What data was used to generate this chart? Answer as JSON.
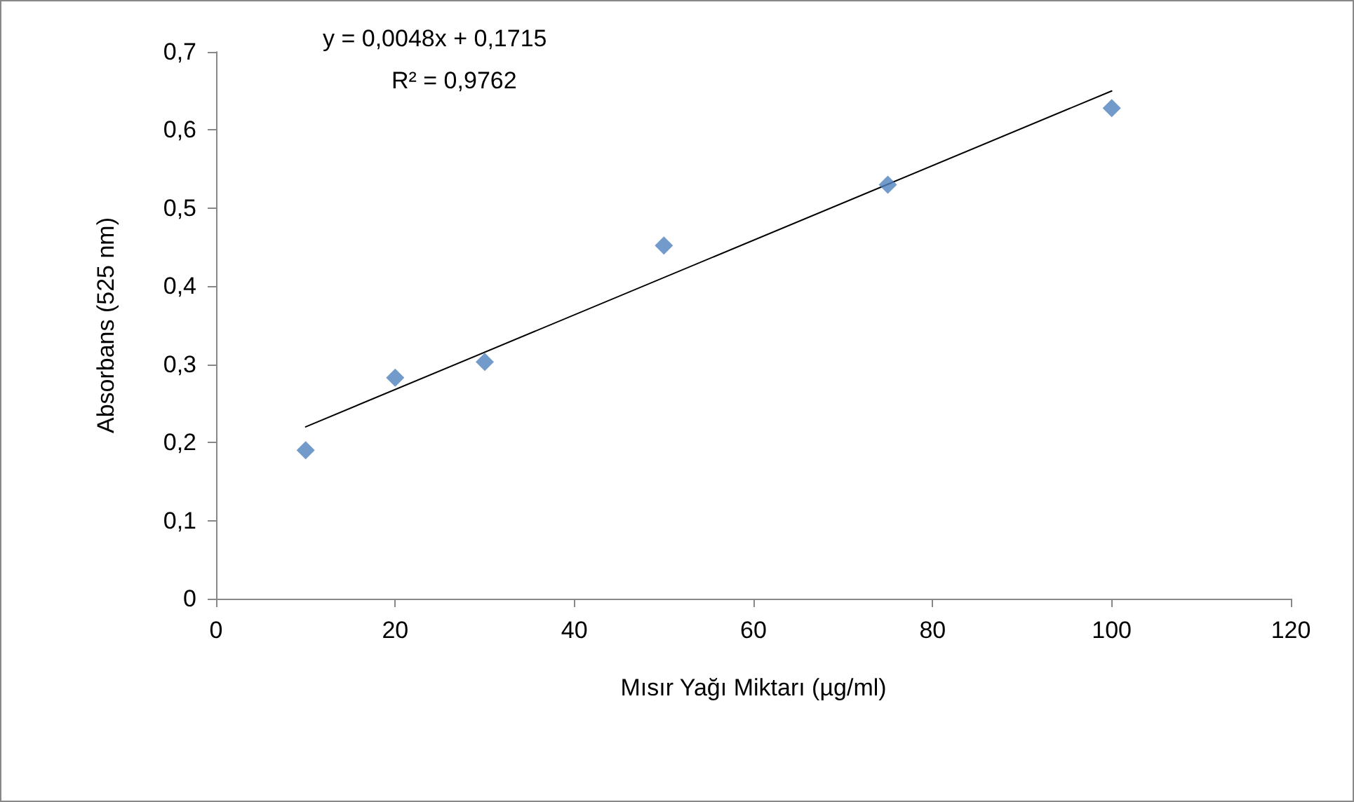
{
  "chart_data": {
    "type": "scatter",
    "xlabel": "Mısır Yağı Miktarı (µg/ml)",
    "ylabel": "Absorbans (525 nm)",
    "annotations": [
      "y = 0,0048x + 0,1715",
      "R² = 0,9762"
    ],
    "series": [
      {
        "color": "#4f81bd",
        "marker": "diamond",
        "x": [
          10,
          20,
          30,
          50,
          75,
          100
        ],
        "values": [
          0.19,
          0.283,
          0.303,
          0.452,
          0.53,
          0.628
        ]
      },
      {
        "type": "line",
        "color": "#000000",
        "marker": "none",
        "x": [
          10,
          100
        ],
        "values": [
          0.22,
          0.65
        ]
      }
    ],
    "xlim": [
      0,
      120
    ],
    "xticks": [
      0,
      20,
      40,
      60,
      80,
      100,
      120
    ],
    "ylim": [
      0,
      0.7
    ],
    "yticks": [
      0,
      {
        "value": 0.1,
        "label": "0,1"
      },
      {
        "value": 0.2,
        "label": "0,2"
      },
      {
        "value": 0.3,
        "label": "0,3"
      },
      {
        "value": 0.4,
        "label": "0,4"
      },
      {
        "value": 0.5,
        "label": "0,5"
      },
      {
        "value": 0.6,
        "label": "0,6"
      },
      {
        "value": 0.7,
        "label": "0,7"
      }
    ],
    "grid": false
  }
}
